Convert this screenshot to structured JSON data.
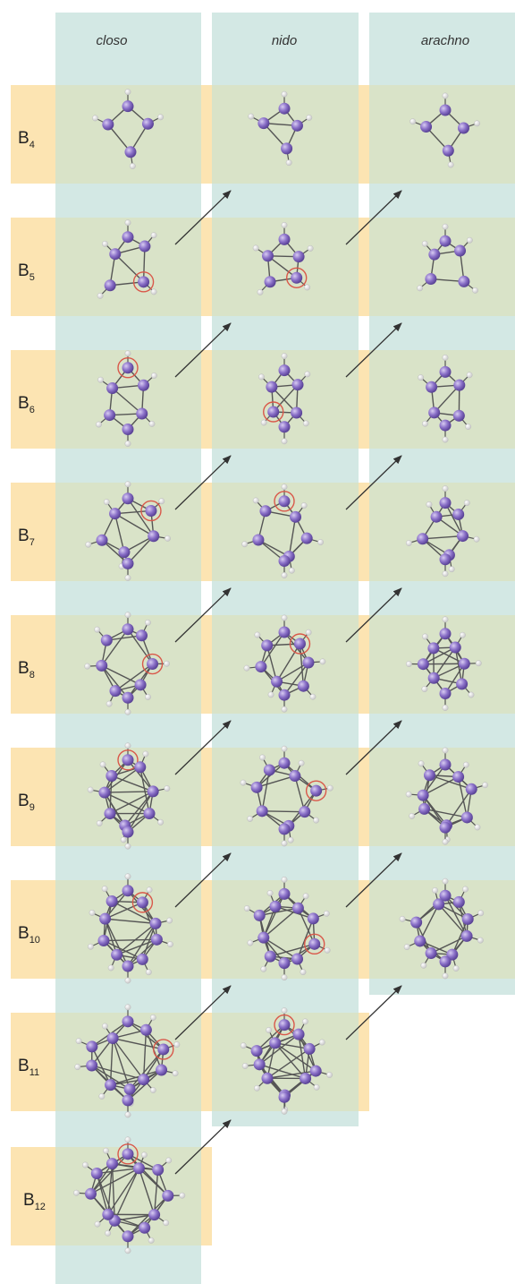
{
  "column_headers": [
    "closo",
    "nido",
    "arachno"
  ],
  "row_labels": [
    {
      "base": "B",
      "sub": "4"
    },
    {
      "base": "B",
      "sub": "5"
    },
    {
      "base": "B",
      "sub": "6"
    },
    {
      "base": "B",
      "sub": "7"
    },
    {
      "base": "B",
      "sub": "8"
    },
    {
      "base": "B",
      "sub": "9"
    },
    {
      "base": "B",
      "sub": "10"
    },
    {
      "base": "B",
      "sub": "11"
    },
    {
      "base": "B",
      "sub": "12"
    }
  ],
  "colors": {
    "column_bg": "#d3e8e4",
    "row_bg": "#fce4b2",
    "cell_bg": "#d9e3c8",
    "boron_atom": "#8a70c8",
    "hydrogen_atom": "#f4f4f4",
    "bond": "#555555",
    "removed_vertex_ring": "#d9584a",
    "arrow": "#333333"
  }
}
